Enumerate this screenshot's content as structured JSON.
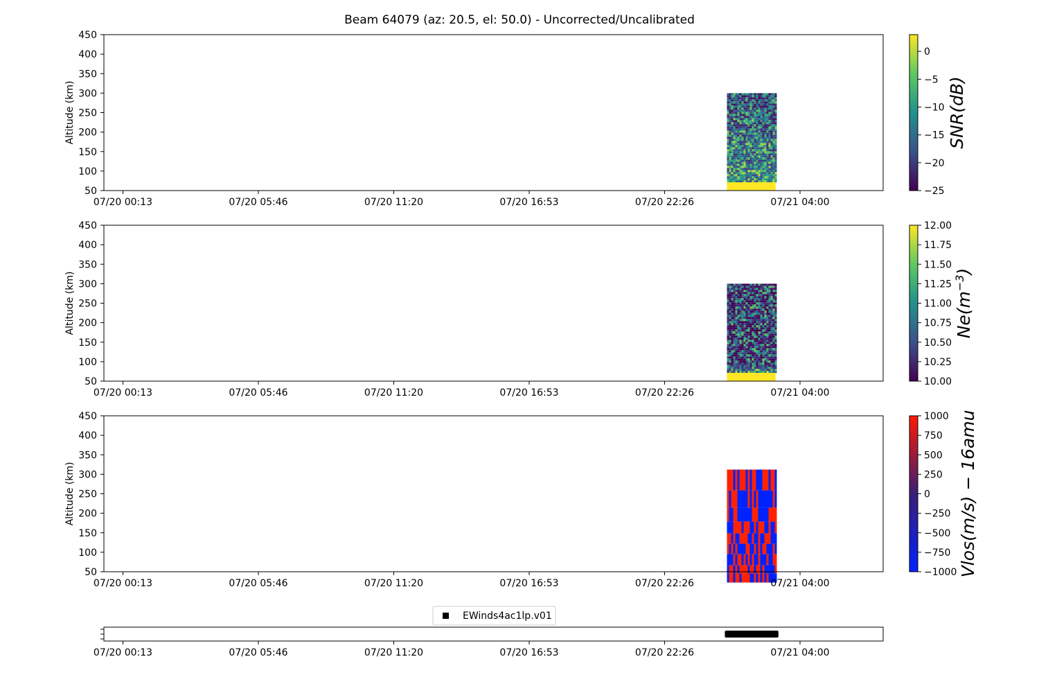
{
  "suptitle": "Beam 64079 (az: 20.5, el: 50.0) - Uncorrected/Uncalibrated",
  "x_tick_labels": [
    "07/20 00:13",
    "07/20 05:46",
    "07/20 11:20",
    "07/20 16:53",
    "07/20 22:26",
    "07/21 04:00"
  ],
  "chart_data": [
    {
      "type": "heatmap",
      "ylabel": "Altitude (km)",
      "ylim": [
        50,
        450
      ],
      "yticks": [
        50,
        100,
        150,
        200,
        250,
        300,
        350,
        400,
        450
      ],
      "x_ticks": [
        "07/20 00:13",
        "07/20 05:46",
        "07/20 11:20",
        "07/20 16:53",
        "07/20 22:26",
        "07/21 04:00"
      ],
      "data_extent": {
        "x_start": "07/21 01:00",
        "x_end": "07/21 03:00",
        "alt_min": 50,
        "alt_max": 300
      },
      "colorbar": {
        "label": "SNR(dB)",
        "colormap": "viridis",
        "min": -25,
        "max": 3,
        "ticks": [
          "0",
          "−5",
          "−10",
          "−15",
          "−20",
          "−25"
        ]
      }
    },
    {
      "type": "heatmap",
      "ylabel": "Altitude (km)",
      "ylim": [
        50,
        450
      ],
      "yticks": [
        50,
        100,
        150,
        200,
        250,
        300,
        350,
        400,
        450
      ],
      "x_ticks": [
        "07/20 00:13",
        "07/20 05:46",
        "07/20 11:20",
        "07/20 16:53",
        "07/20 22:26",
        "07/21 04:00"
      ],
      "data_extent": {
        "x_start": "07/21 01:00",
        "x_end": "07/21 03:00",
        "alt_min": 50,
        "alt_max": 300
      },
      "colorbar": {
        "label": "Ne(m",
        "label_exponent": "−3",
        "label_close": ")",
        "colormap": "viridis",
        "min": 10,
        "max": 12,
        "ticks": [
          "12.00",
          "11.75",
          "11.50",
          "11.25",
          "11.00",
          "10.75",
          "10.50",
          "10.25",
          "10.00"
        ]
      }
    },
    {
      "type": "heatmap",
      "ylabel": "Altitude (km)",
      "ylim": [
        50,
        450
      ],
      "yticks": [
        50,
        100,
        150,
        200,
        250,
        300,
        350,
        400,
        450
      ],
      "x_ticks": [
        "07/20 00:13",
        "07/20 05:46",
        "07/20 11:20",
        "07/20 16:53",
        "07/20 22:26",
        "07/21 04:00"
      ],
      "data_extent": {
        "x_start": "07/21 01:00",
        "x_end": "07/21 03:00",
        "alt_min": 50,
        "alt_max": 312
      },
      "colorbar": {
        "label": "Vlos(m/s) − 16amu",
        "colormap": "blue-red",
        "min": -1000,
        "max": 1000,
        "ticks": [
          "1000",
          "750",
          "500",
          "250",
          "0",
          "−250",
          "−500",
          "−750",
          "−1000"
        ]
      }
    },
    {
      "type": "scatter",
      "x_ticks": [
        "07/20 00:13",
        "07/20 05:46",
        "07/20 11:20",
        "07/20 16:53",
        "07/20 22:26",
        "07/21 04:00"
      ],
      "legend": "EWinds4ac1lp.v01",
      "legend_placement": "top-center",
      "marker": "square",
      "data_extent": {
        "x_start": "07/21 01:00",
        "x_end": "07/21 03:00"
      }
    }
  ],
  "colors": {
    "axis": "#000000",
    "bar": "#000000",
    "viridis_yellow": "#fde725",
    "red": "#ff2200",
    "blue": "#0022ff"
  }
}
